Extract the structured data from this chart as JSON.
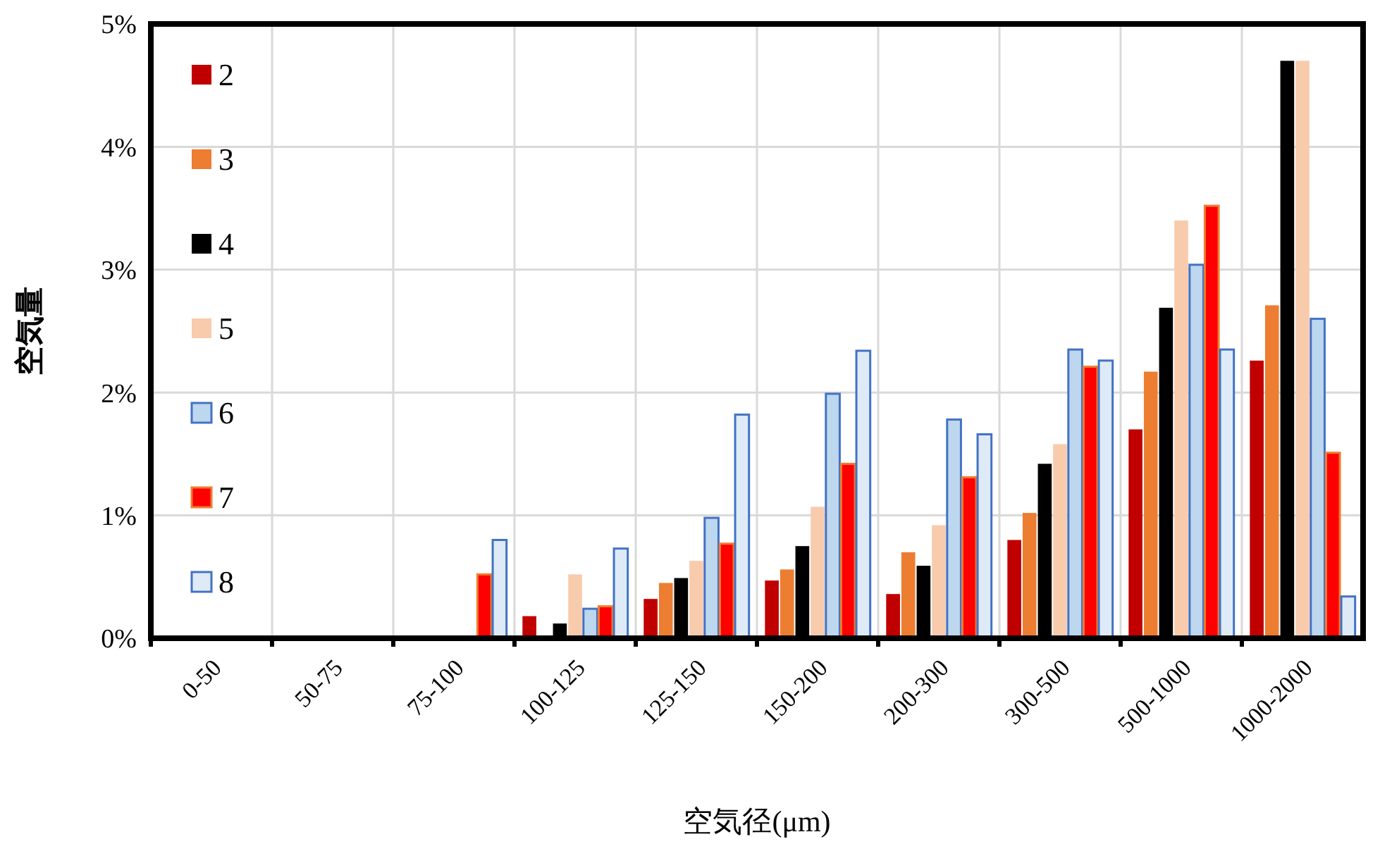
{
  "chart_data": {
    "type": "bar",
    "xlabel": "空気径(μm)",
    "ylabel": "空気量",
    "categories": [
      "0-50",
      "50-75",
      "75-100",
      "100-125",
      "125-150",
      "150-200",
      "200-300",
      "300-500",
      "500-1000",
      "1000-2000"
    ],
    "series": [
      {
        "name": "2",
        "color": "#c00000",
        "values": [
          0,
          0,
          0,
          0.18,
          0.32,
          0.47,
          0.36,
          0.8,
          1.7,
          2.26
        ]
      },
      {
        "name": "3",
        "color": "#ed7d31",
        "values": [
          0,
          0,
          0,
          0,
          0.45,
          0.56,
          0.7,
          1.02,
          2.17,
          2.71
        ]
      },
      {
        "name": "4",
        "color": "#000000",
        "values": [
          0,
          0,
          0,
          0.12,
          0.49,
          0.75,
          0.59,
          1.42,
          2.69,
          4.7
        ]
      },
      {
        "name": "5",
        "color": "#f8cbad",
        "values": [
          0,
          0,
          0,
          0.52,
          0.63,
          1.07,
          0.92,
          1.58,
          3.4,
          4.7
        ]
      },
      {
        "name": "6",
        "color": "#bdd7ee",
        "values": [
          0,
          0,
          0,
          0.24,
          0.98,
          1.99,
          1.78,
          2.35,
          3.04,
          2.6
        ]
      },
      {
        "name": "7",
        "color": "#ff0000",
        "values": [
          0,
          0,
          0.52,
          0.26,
          0.77,
          1.42,
          1.31,
          2.21,
          3.52,
          1.51
        ]
      },
      {
        "name": "8",
        "color": "#deebf7",
        "values": [
          0,
          0,
          0.8,
          0.73,
          1.82,
          2.34,
          1.66,
          2.26,
          2.35,
          0.34
        ]
      }
    ],
    "ylim": [
      0,
      5
    ],
    "yticks": [
      {
        "value": 0,
        "label": "0%"
      },
      {
        "value": 1,
        "label": "1%"
      },
      {
        "value": 2,
        "label": "2%"
      },
      {
        "value": 3,
        "label": "3%"
      },
      {
        "value": 4,
        "label": "4%"
      },
      {
        "value": 5,
        "label": "5%"
      }
    ],
    "grid": true,
    "legend": "top left"
  }
}
